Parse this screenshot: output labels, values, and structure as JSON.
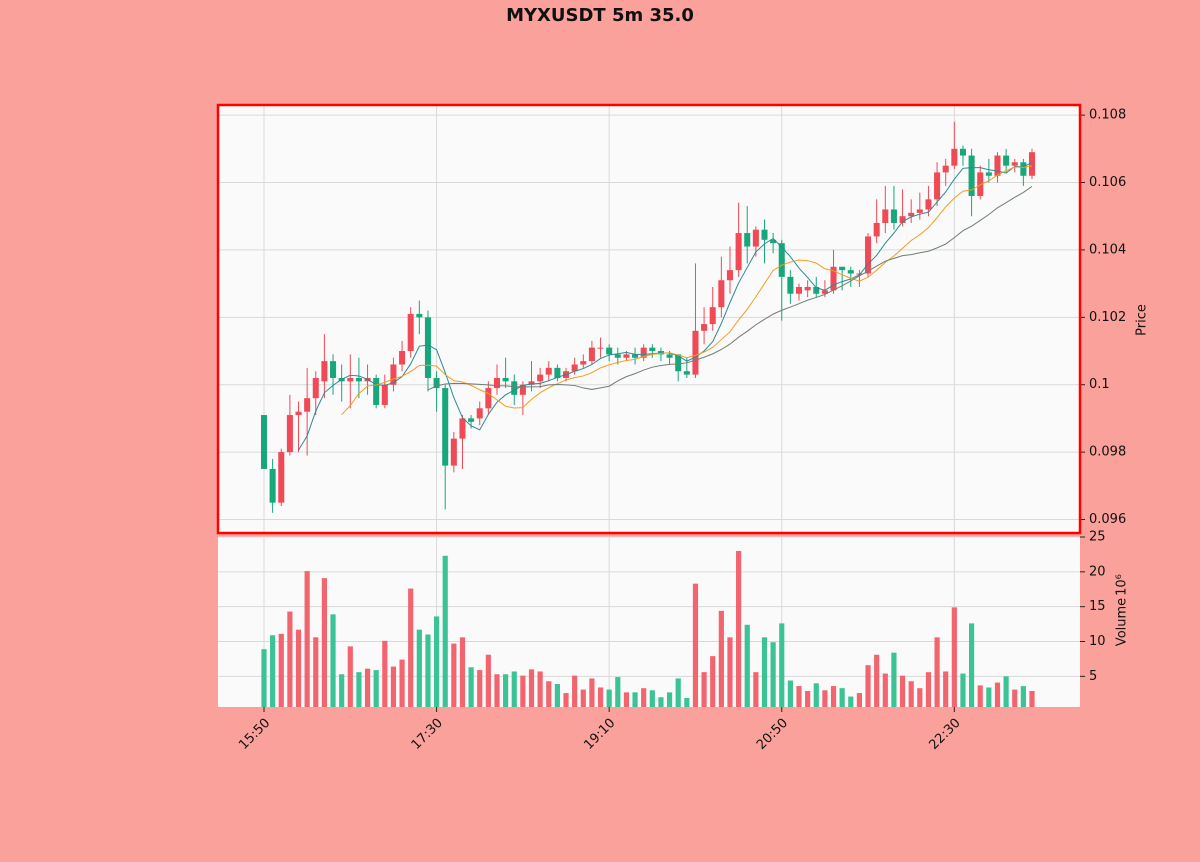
{
  "chart_data": [
    {
      "type": "candlestick",
      "title": "MYXUSDT 5m 35.0",
      "ylabel": "Price",
      "categories": [
        "15:50",
        null,
        null,
        null,
        null,
        null,
        null,
        null,
        null,
        null,
        null,
        null,
        null,
        null,
        null,
        null,
        null,
        null,
        null,
        null,
        "17:30",
        null,
        null,
        null,
        null,
        null,
        null,
        null,
        null,
        null,
        null,
        null,
        null,
        null,
        null,
        null,
        null,
        null,
        null,
        null,
        "19:10",
        null,
        null,
        null,
        null,
        null,
        null,
        null,
        null,
        null,
        null,
        null,
        null,
        null,
        null,
        null,
        null,
        null,
        null,
        null,
        "20:50",
        null,
        null,
        null,
        null,
        null,
        null,
        null,
        null,
        null,
        null,
        null,
        null,
        null,
        null,
        null,
        null,
        null,
        null,
        null,
        "22:30",
        null,
        null,
        null,
        null,
        null,
        null,
        null,
        null,
        null
      ],
      "open": [
        0.0991,
        0.0975,
        0.0965,
        0.098,
        0.0991,
        0.0992,
        0.0996,
        0.1001,
        0.1007,
        0.1002,
        0.1001,
        0.1002,
        0.1001,
        0.1002,
        0.0994,
        0.1,
        0.1006,
        0.101,
        0.1021,
        0.102,
        0.1002,
        0.0999,
        0.0976,
        0.0984,
        0.099,
        0.099,
        0.0993,
        0.0999,
        0.1002,
        0.1001,
        0.0997,
        0.1,
        0.1001,
        0.1003,
        0.1005,
        0.1002,
        0.1004,
        0.1006,
        0.1007,
        0.1011,
        0.1011,
        0.1009,
        0.1008,
        0.1009,
        0.1008,
        0.1011,
        0.101,
        0.1009,
        0.1009,
        0.1004,
        0.1003,
        0.1016,
        0.1018,
        0.1023,
        0.1031,
        0.1034,
        0.1045,
        0.1041,
        0.1046,
        0.1043,
        0.1042,
        0.1032,
        0.1027,
        0.1028,
        0.1029,
        0.1027,
        0.1028,
        0.1035,
        0.1034,
        0.1033,
        0.1033,
        0.1044,
        0.1048,
        0.1052,
        0.1048,
        0.105,
        0.1051,
        0.1052,
        0.1055,
        0.1063,
        0.1065,
        0.107,
        0.1068,
        0.1056,
        0.1063,
        0.1062,
        0.1068,
        0.1065,
        0.1066,
        0.1062
      ],
      "high": [
        0.0991,
        0.0978,
        0.0981,
        0.0997,
        0.0995,
        0.1005,
        0.1004,
        0.1015,
        0.1009,
        0.1006,
        0.1009,
        0.1008,
        0.1006,
        0.1003,
        0.1003,
        0.1008,
        0.1013,
        0.1023,
        0.1025,
        0.1022,
        0.1004,
        0.1,
        0.0986,
        0.0991,
        0.0991,
        0.0995,
        0.1001,
        0.1006,
        0.1008,
        0.1003,
        0.1001,
        0.1007,
        0.1005,
        0.1007,
        0.1006,
        0.1005,
        0.1008,
        0.1009,
        0.1013,
        0.1014,
        0.1012,
        0.1011,
        0.101,
        0.1011,
        0.1012,
        0.1012,
        0.1011,
        0.101,
        0.1009,
        0.1008,
        0.1036,
        0.1023,
        0.1029,
        0.1038,
        0.1041,
        0.1054,
        0.1053,
        0.1047,
        0.1049,
        0.1045,
        0.1043,
        0.1034,
        0.103,
        0.1031,
        0.1032,
        0.1031,
        0.104,
        0.1035,
        0.1035,
        0.1034,
        0.1045,
        0.1055,
        0.1059,
        0.1059,
        0.1058,
        0.1055,
        0.1057,
        0.1059,
        0.1066,
        0.1067,
        0.1078,
        0.1071,
        0.107,
        0.1065,
        0.1067,
        0.1069,
        0.107,
        0.1067,
        0.1067,
        0.107
      ],
      "low": [
        0.0975,
        0.0962,
        0.0964,
        0.0979,
        0.098,
        0.0979,
        0.0991,
        0.0996,
        0.0997,
        0.0995,
        0.0993,
        0.0996,
        0.0997,
        0.0993,
        0.0993,
        0.0998,
        0.1004,
        0.1008,
        0.1015,
        0.0998,
        0.0992,
        0.0963,
        0.0974,
        0.0975,
        0.0987,
        0.0988,
        0.0991,
        0.0997,
        0.0999,
        0.0994,
        0.0991,
        0.0998,
        0.0999,
        0.1001,
        0.1001,
        0.1001,
        0.1003,
        0.1005,
        0.1006,
        0.1008,
        0.1007,
        0.1006,
        0.1007,
        0.1006,
        0.1007,
        0.1008,
        0.1007,
        0.1006,
        0.1001,
        0.1002,
        0.1002,
        0.1012,
        0.1016,
        0.102,
        0.1027,
        0.1032,
        0.1036,
        0.1038,
        0.1036,
        0.1039,
        0.1019,
        0.1024,
        0.1025,
        0.1026,
        0.1026,
        0.1026,
        0.1027,
        0.1028,
        0.1029,
        0.1029,
        0.1032,
        0.1042,
        0.1045,
        0.1046,
        0.1047,
        0.1048,
        0.1049,
        0.105,
        0.1053,
        0.1059,
        0.1064,
        0.1065,
        0.105,
        0.1055,
        0.106,
        0.106,
        0.1063,
        0.1063,
        0.1059,
        0.1061
      ],
      "close": [
        0.0975,
        0.0965,
        0.098,
        0.0991,
        0.0992,
        0.0996,
        0.1002,
        0.1007,
        0.1002,
        0.1001,
        0.1002,
        0.1001,
        0.1002,
        0.0994,
        0.1,
        0.1006,
        0.101,
        0.1021,
        0.102,
        0.1002,
        0.0999,
        0.0976,
        0.0984,
        0.099,
        0.0989,
        0.0993,
        0.0999,
        0.1002,
        0.1001,
        0.0997,
        0.1,
        0.1001,
        0.1003,
        0.1005,
        0.1002,
        0.1004,
        0.1006,
        0.1007,
        0.1011,
        0.1011,
        0.1009,
        0.1008,
        0.1009,
        0.1008,
        0.1011,
        0.101,
        0.1009,
        0.1008,
        0.1004,
        0.1003,
        0.1016,
        0.1018,
        0.1023,
        0.1031,
        0.1034,
        0.1045,
        0.1041,
        0.1046,
        0.1043,
        0.1042,
        0.1032,
        0.1027,
        0.1029,
        0.1029,
        0.1027,
        0.1028,
        0.1035,
        0.1034,
        0.1033,
        0.1033,
        0.1044,
        0.1048,
        0.1052,
        0.1048,
        0.105,
        0.1051,
        0.1052,
        0.1055,
        0.1063,
        0.1065,
        0.107,
        0.1068,
        0.1056,
        0.1063,
        0.1062,
        0.1068,
        0.1065,
        0.1066,
        0.1062,
        0.1069
      ],
      "up_color": "#ef4a55",
      "down_color": "#17a77b",
      "series": [
        {
          "color": "#2a8a96",
          "values": [
            null,
            null,
            null,
            null,
            0.09806,
            0.09848,
            0.09922,
            0.09976,
            0.09998,
            0.10016,
            0.10028,
            0.10026,
            0.10016,
            0.1,
            0.09998,
            0.10006,
            0.10024,
            0.10062,
            0.10114,
            0.10118,
            0.10104,
            0.10036,
            0.09962,
            0.09902,
            0.09878,
            0.09866,
            0.09912,
            0.09948,
            0.0997,
            0.09984,
            0.09998,
            0.10002,
            0.10004,
            0.10012,
            0.10022,
            0.1003,
            0.1004,
            0.10048,
            0.1006,
            0.10078,
            0.10088,
            0.10092,
            0.10096,
            0.1009,
            0.1009,
            0.10092,
            0.10094,
            0.10094,
            0.10086,
            0.1007,
            0.10082,
            0.101,
            0.10128,
            0.10182,
            0.10244,
            0.10302,
            0.10348,
            0.10394,
            0.10418,
            0.10434,
            0.10408,
            0.1038,
            0.10346,
            0.10318,
            0.10288,
            0.1028,
            0.10296,
            0.10306,
            0.10314,
            0.10326,
            0.10358,
            0.10384,
            0.1042,
            0.1045,
            0.10484,
            0.10498,
            0.10506,
            0.10512,
            0.10542,
            0.10572,
            0.1061,
            0.10642,
            0.10644,
            0.10644,
            0.10638,
            0.10634,
            0.10628,
            0.10648,
            0.10646,
            0.1066
          ]
        },
        {
          "color": "#f39c1f",
          "values": [
            null,
            null,
            null,
            null,
            null,
            null,
            null,
            null,
            null,
            0.09911,
            0.09938,
            0.09974,
            0.09996,
            0.09999,
            0.10007,
            0.10017,
            0.10025,
            0.10039,
            0.10057,
            0.10058,
            0.10055,
            0.1003,
            0.10012,
            0.10008,
            0.09998,
            0.09985,
            0.09974,
            0.09955,
            0.09936,
            0.09931,
            0.09932,
            0.09957,
            0.09976,
            0.09991,
            0.10003,
            0.10014,
            0.10021,
            0.10026,
            0.10036,
            0.1005,
            0.10059,
            0.10066,
            0.10072,
            0.10075,
            0.10084,
            0.1009,
            0.10093,
            0.10095,
            0.10088,
            0.1008,
            0.10087,
            0.10097,
            0.10111,
            0.10134,
            0.10157,
            0.10192,
            0.10224,
            0.10261,
            0.103,
            0.10339,
            0.10355,
            0.10364,
            0.1037,
            0.10368,
            0.10361,
            0.10344,
            0.10338,
            0.10326,
            0.10316,
            0.10307,
            0.10319,
            0.1034,
            0.10363,
            0.10382,
            0.10405,
            0.10428,
            0.10445,
            0.10466,
            0.10496,
            0.10528,
            0.10554,
            0.10574,
            0.10578,
            0.10593,
            0.10605,
            0.10622,
            0.10635,
            0.10646,
            0.10645,
            0.10649
          ]
        },
        {
          "color": "#6f7f72",
          "values": [
            null,
            null,
            null,
            null,
            null,
            null,
            null,
            null,
            null,
            null,
            null,
            null,
            null,
            null,
            null,
            null,
            null,
            null,
            null,
            0.099845,
            0.099965,
            0.10002,
            0.10004,
            0.100035,
            0.100025,
            0.10001,
            0.099995,
            0.09997,
            0.099965,
            0.099945,
            0.099935,
            0.099935,
            0.09994,
            0.099995,
            0.100005,
            0.099995,
            0.099975,
            0.099905,
            0.09986,
            0.099905,
            0.099955,
            0.100115,
            0.10024,
            0.10033,
            0.100435,
            0.10052,
            0.10057,
            0.100605,
            0.10062,
            0.10065,
            0.10073,
            0.100815,
            0.100915,
            0.101045,
            0.101205,
            0.10141,
            0.101585,
            0.10178,
            0.10194,
            0.102095,
            0.10221,
            0.102305,
            0.102405,
            0.10251,
            0.10259,
            0.10268,
            0.10281,
            0.102935,
            0.10308,
            0.10323,
            0.10337,
            0.10352,
            0.103665,
            0.10375,
            0.10383,
            0.10386,
            0.103915,
            0.10396,
            0.10406,
            0.104175,
            0.104365,
            0.10457,
            0.104705,
            0.104875,
            0.10505,
            0.10525,
            0.1054,
            0.10556,
            0.105705,
            0.105885
          ]
        }
      ],
      "ylim": [
        0.0956,
        0.1083
      ],
      "yticks": [
        0.096,
        0.098,
        0.1,
        0.102,
        0.104,
        0.106,
        0.108
      ],
      "yticks_labels_fmt": null,
      "grid": true
    },
    {
      "type": "bar",
      "ylabel": "Volume",
      "yunit": "10⁶",
      "values": [
        8.9,
        10.9,
        11.1,
        14.3,
        11.7,
        20.1,
        10.6,
        19.1,
        13.9,
        5.3,
        9.3,
        5.6,
        6.1,
        5.9,
        10.1,
        6.4,
        7.4,
        17.6,
        11.7,
        11.0,
        13.6,
        22.3,
        9.7,
        10.6,
        6.3,
        5.9,
        8.1,
        5.3,
        5.3,
        5.7,
        5.1,
        6.0,
        5.7,
        4.3,
        3.9,
        2.6,
        5.1,
        3.1,
        4.7,
        3.4,
        3.1,
        4.9,
        2.7,
        2.7,
        3.3,
        3.0,
        2.0,
        2.7,
        4.7,
        1.9,
        18.3,
        5.6,
        7.9,
        14.4,
        10.6,
        23.0,
        12.4,
        5.6,
        10.6,
        9.9,
        12.6,
        4.4,
        3.6,
        2.9,
        4.0,
        3.0,
        3.6,
        3.3,
        2.1,
        2.6,
        6.6,
        8.1,
        5.4,
        8.4,
        5.1,
        4.3,
        3.3,
        5.6,
        10.6,
        5.7,
        14.9,
        5.4,
        12.6,
        3.7,
        3.4,
        4.1,
        5.0,
        3.1,
        3.6,
        2.9
      ],
      "up_color": "#f2656e",
      "down_color": "#3cc395",
      "ylim": [
        0.6,
        25
      ],
      "yticks": [
        5,
        10,
        15,
        20,
        25
      ],
      "grid": true
    }
  ]
}
